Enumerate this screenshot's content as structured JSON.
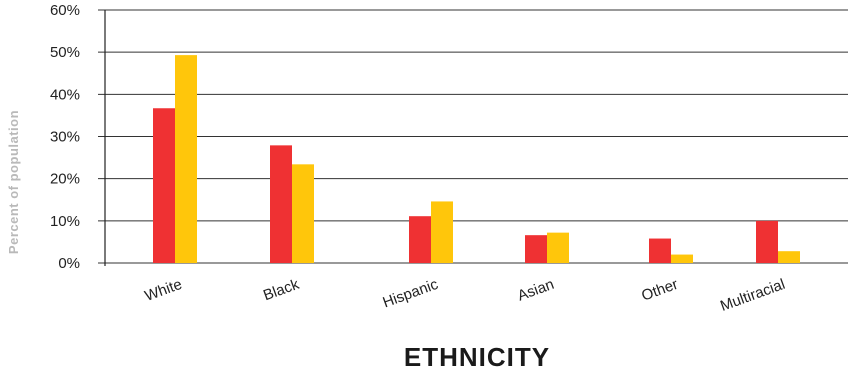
{
  "chart_data": {
    "type": "bar",
    "categories": [
      "White",
      "Black",
      "Hispanic",
      "Asian",
      "Other",
      "Multiracial"
    ],
    "series": [
      {
        "values": [
          36.7,
          27.9,
          11.1,
          6.6,
          5.8,
          10.0
        ],
        "color": "#ef3133"
      },
      {
        "values": [
          49.3,
          23.4,
          14.6,
          7.2,
          2.0,
          2.8
        ],
        "color": "#ffc60b"
      }
    ],
    "ylim": [
      0,
      60
    ],
    "yticks": [
      0,
      10,
      20,
      30,
      40,
      50,
      60
    ],
    "ytick_labels": [
      "0%",
      "10%",
      "20%",
      "30%",
      "40%",
      "50%",
      "60%"
    ],
    "ylabel": "Percent of population",
    "xlabel": "ETHNICITY",
    "title": "",
    "legend": "none",
    "grid": "horizontal"
  }
}
